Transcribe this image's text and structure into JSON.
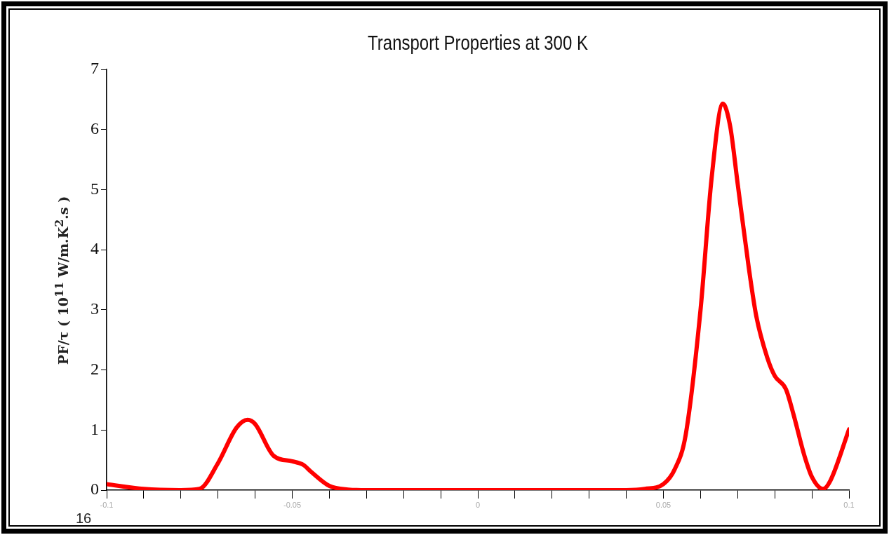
{
  "chart_data": {
    "type": "line",
    "title": "Transport Properties at 300 K",
    "ylabel": "PF/τ ( 10$^{11}$  W/m.K$^{2}$.s )",
    "annotations": [
      "16"
    ],
    "x": [
      -0.1,
      -0.09,
      -0.08,
      -0.075,
      -0.07,
      -0.065,
      -0.062,
      -0.06,
      -0.055,
      -0.05,
      -0.047,
      -0.045,
      -0.04,
      -0.035,
      -0.03,
      0,
      0.04,
      0.045,
      0.05,
      0.053,
      0.056,
      0.06,
      0.063,
      0.066,
      0.068,
      0.07,
      0.073,
      0.075,
      0.078,
      0.08,
      0.083,
      0.085,
      0.088,
      0.09,
      0.093,
      0.095,
      0.1
    ],
    "series": [
      {
        "color": "#ff0000",
        "values": [
          0.1,
          0.02,
          0,
          0.02,
          0.45,
          1.04,
          1.17,
          1.1,
          0.57,
          0.48,
          0.42,
          0.31,
          0.07,
          0.01,
          0,
          0,
          0,
          0.02,
          0.1,
          0.34,
          0.92,
          3.0,
          5.2,
          6.43,
          6.05,
          5.1,
          3.7,
          2.9,
          2.2,
          1.9,
          1.68,
          1.27,
          0.57,
          0.22,
          0.02,
          0.16,
          1.01
        ]
      }
    ],
    "xlim": [
      -0.1,
      0.1
    ],
    "xticks": [
      {
        "value": -0.1,
        "label": "-0.1"
      },
      {
        "value": -0.09,
        "label": null
      },
      {
        "value": -0.08,
        "label": null
      },
      {
        "value": -0.07,
        "label": null
      },
      {
        "value": -0.06,
        "label": null
      },
      {
        "value": -0.05,
        "label": "-0.05"
      },
      {
        "value": -0.04,
        "label": null
      },
      {
        "value": -0.03,
        "label": null
      },
      {
        "value": -0.02,
        "label": null
      },
      {
        "value": -0.01,
        "label": null
      },
      {
        "value": 0,
        "label": "0"
      },
      {
        "value": 0.01,
        "label": null
      },
      {
        "value": 0.02,
        "label": null
      },
      {
        "value": 0.03,
        "label": null
      },
      {
        "value": 0.04,
        "label": null
      },
      {
        "value": 0.05,
        "label": "0.05"
      },
      {
        "value": 0.06,
        "label": null
      },
      {
        "value": 0.07,
        "label": null
      },
      {
        "value": 0.08,
        "label": null
      },
      {
        "value": 0.09,
        "label": null
      },
      {
        "value": 0.1,
        "label": "0.1"
      }
    ],
    "ylim": [
      0,
      7
    ],
    "yticks": [
      0,
      1,
      2,
      3,
      4,
      5,
      6,
      7
    ],
    "grid": false,
    "legend": false,
    "marker": "none",
    "line_style": "solid"
  }
}
